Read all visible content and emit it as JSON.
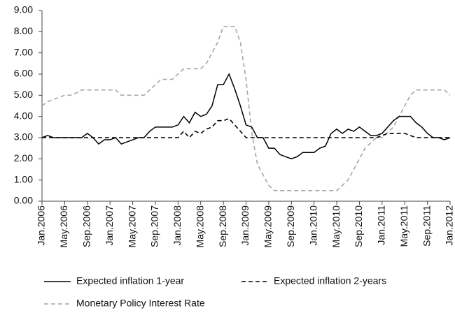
{
  "chart_data": {
    "type": "line",
    "categories": [
      "Jan.2006",
      null,
      null,
      null,
      "May.2006",
      null,
      null,
      null,
      "Sep.2006",
      null,
      null,
      null,
      "Jan.2007",
      null,
      null,
      null,
      "May.2007",
      null,
      null,
      null,
      "Sep.2007",
      null,
      null,
      null,
      "Jan.2008",
      null,
      null,
      null,
      "May.2008",
      null,
      null,
      null,
      "Sep.2008",
      null,
      null,
      null,
      "Jan.2009",
      null,
      null,
      null,
      "May.2009",
      null,
      null,
      null,
      "Sep.2009",
      null,
      null,
      null,
      "Jan.2010",
      null,
      null,
      null,
      "May.2010",
      null,
      null,
      null,
      "Sep.2010",
      null,
      null,
      null,
      "Jan.2011",
      null,
      null,
      null,
      "May.2011",
      null,
      null,
      null,
      "Sep.2011",
      null,
      null,
      null,
      "Jan.2012"
    ],
    "series": [
      {
        "name": "Expected inflation 1-year",
        "color": "#000000",
        "style": "solid",
        "values": [
          3.0,
          3.1,
          3.0,
          3.0,
          3.0,
          3.0,
          3.0,
          3.0,
          3.2,
          3.0,
          2.7,
          2.9,
          2.9,
          3.0,
          2.7,
          2.8,
          2.9,
          3.0,
          3.0,
          3.3,
          3.5,
          3.5,
          3.5,
          3.5,
          3.6,
          4.0,
          3.7,
          4.2,
          4.0,
          4.1,
          4.5,
          5.5,
          5.5,
          6.0,
          5.3,
          4.5,
          3.6,
          3.5,
          3.0,
          3.0,
          2.5,
          2.5,
          2.2,
          2.1,
          2.0,
          2.1,
          2.3,
          2.3,
          2.3,
          2.5,
          2.6,
          3.2,
          3.4,
          3.2,
          3.4,
          3.3,
          3.5,
          3.3,
          3.1,
          3.1,
          3.2,
          3.5,
          3.8,
          4.0,
          4.0,
          4.0,
          3.7,
          3.5,
          3.2,
          3.0,
          3.0,
          2.9,
          3.0
        ]
      },
      {
        "name": "Expected inflation 2-years",
        "color": "#000000",
        "style": "dashed",
        "values": [
          3.0,
          3.0,
          3.0,
          3.0,
          3.0,
          3.0,
          3.0,
          3.0,
          3.0,
          3.0,
          3.0,
          3.0,
          3.0,
          3.0,
          3.0,
          3.0,
          3.0,
          3.0,
          3.0,
          3.0,
          3.0,
          3.0,
          3.0,
          3.0,
          3.0,
          3.3,
          3.0,
          3.3,
          3.2,
          3.4,
          3.5,
          3.8,
          3.8,
          3.9,
          3.6,
          3.3,
          3.0,
          3.0,
          3.0,
          3.0,
          3.0,
          3.0,
          3.0,
          3.0,
          3.0,
          3.0,
          3.0,
          3.0,
          3.0,
          3.0,
          3.0,
          3.0,
          3.0,
          3.0,
          3.0,
          3.0,
          3.0,
          3.0,
          3.0,
          3.0,
          3.1,
          3.2,
          3.2,
          3.2,
          3.2,
          3.1,
          3.0,
          3.0,
          3.0,
          3.0,
          3.0,
          3.0,
          3.0
        ]
      },
      {
        "name": "Monetary Policy Interest Rate",
        "color": "#a6a6a6",
        "style": "dashed",
        "values": [
          4.5,
          4.7,
          4.8,
          4.9,
          5.0,
          5.0,
          5.1,
          5.25,
          5.25,
          5.25,
          5.25,
          5.25,
          5.25,
          5.25,
          5.0,
          5.0,
          5.0,
          5.0,
          5.0,
          5.25,
          5.5,
          5.75,
          5.75,
          5.75,
          6.0,
          6.25,
          6.25,
          6.25,
          6.25,
          6.5,
          7.0,
          7.5,
          8.25,
          8.25,
          8.25,
          7.5,
          5.75,
          3.25,
          1.75,
          1.25,
          0.75,
          0.5,
          0.5,
          0.5,
          0.5,
          0.5,
          0.5,
          0.5,
          0.5,
          0.5,
          0.5,
          0.5,
          0.5,
          0.75,
          1.0,
          1.5,
          2.0,
          2.5,
          2.75,
          3.0,
          3.0,
          3.25,
          3.5,
          4.0,
          4.5,
          5.0,
          5.25,
          5.25,
          5.25,
          5.25,
          5.25,
          5.25,
          5.0
        ]
      }
    ],
    "ylim": [
      0,
      9
    ],
    "yticks": [
      {
        "value": 0,
        "label": "0.00"
      },
      {
        "value": 1,
        "label": "1.00"
      },
      {
        "value": 2,
        "label": "2.00"
      },
      {
        "value": 3,
        "label": "3.00"
      },
      {
        "value": 4,
        "label": "4.00"
      },
      {
        "value": 5,
        "label": "5.00"
      },
      {
        "value": 6,
        "label": "6.00"
      },
      {
        "value": 7,
        "label": "7.00"
      },
      {
        "value": 8,
        "label": "8.00"
      },
      {
        "value": 9,
        "label": "9.00"
      }
    ],
    "grid": false,
    "legend": "bottom"
  }
}
